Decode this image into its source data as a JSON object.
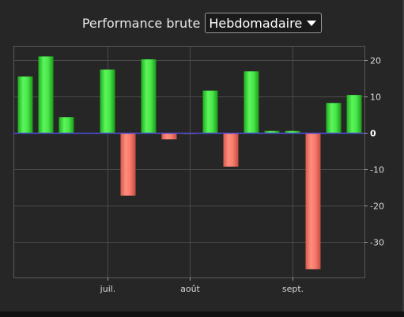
{
  "header": {
    "title": "Performance brute",
    "period_selected": "Hebdomadaire"
  },
  "colors": {
    "positive": "#44e044",
    "negative": "#f87a6a",
    "zero_line": "#4d4dd9",
    "grid": "#4a4a4a",
    "background": "#262626"
  },
  "chart_data": {
    "type": "bar",
    "title": "",
    "xlabel": "",
    "ylabel": "",
    "ylim": [
      -40,
      24
    ],
    "yticks": [
      20,
      10,
      0,
      -10,
      -20,
      -30
    ],
    "grid": true,
    "y_axis_position": "right",
    "x_labels": [
      {
        "label": "juil.",
        "index": 4
      },
      {
        "label": "août",
        "index": 8
      },
      {
        "label": "sept.",
        "index": 13
      }
    ],
    "values": [
      15.5,
      21.0,
      4.3,
      0,
      17.4,
      -17.3,
      20.2,
      -1.8,
      -0.3,
      11.6,
      -9.3,
      16.9,
      0.5,
      0.5,
      -37.5,
      8.2,
      10.4
    ]
  }
}
